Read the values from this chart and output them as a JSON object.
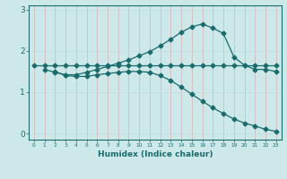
{
  "xlabel": "Humidex (Indice chaleur)",
  "bg_color": "#cce8e8",
  "line_color": "#1a6b6b",
  "grid_color_v": "#b8dede",
  "grid_color_h": "#c8e8e8",
  "xlim": [
    -0.5,
    23.5
  ],
  "ylim": [
    -0.15,
    3.1
  ],
  "yticks": [
    0,
    1,
    2,
    3
  ],
  "xticks": [
    0,
    1,
    2,
    3,
    4,
    5,
    6,
    7,
    8,
    9,
    10,
    11,
    12,
    13,
    14,
    15,
    16,
    17,
    18,
    19,
    20,
    21,
    22,
    23
  ],
  "series1_x": [
    0,
    1,
    2,
    3,
    4,
    5,
    6,
    7,
    8,
    9,
    10,
    11,
    12,
    13,
    14,
    15,
    16,
    17,
    18,
    19,
    20,
    21,
    22,
    23
  ],
  "series1_y": [
    1.65,
    1.65,
    1.65,
    1.65,
    1.65,
    1.65,
    1.65,
    1.65,
    1.65,
    1.65,
    1.65,
    1.65,
    1.65,
    1.65,
    1.65,
    1.65,
    1.65,
    1.65,
    1.65,
    1.65,
    1.65,
    1.65,
    1.65,
    1.65
  ],
  "series2_x": [
    1,
    2,
    3,
    4,
    5,
    6,
    7,
    8,
    9,
    10,
    11,
    12,
    13,
    14,
    15,
    16,
    17,
    18,
    19,
    20,
    21,
    22,
    23
  ],
  "series2_y": [
    1.55,
    1.48,
    1.42,
    1.42,
    1.48,
    1.55,
    1.62,
    1.7,
    1.78,
    1.88,
    1.98,
    2.12,
    2.28,
    2.45,
    2.58,
    2.65,
    2.55,
    2.42,
    1.85,
    1.65,
    1.55,
    1.55,
    1.5
  ],
  "series3_x": [
    2,
    3,
    4,
    5,
    6,
    7,
    8,
    9,
    10,
    11,
    12,
    13,
    14,
    15,
    16,
    17,
    18,
    19,
    20,
    21,
    22,
    23
  ],
  "series3_y": [
    1.5,
    1.4,
    1.38,
    1.38,
    1.42,
    1.45,
    1.48,
    1.5,
    1.5,
    1.48,
    1.4,
    1.28,
    1.12,
    0.95,
    0.78,
    0.62,
    0.48,
    0.35,
    0.25,
    0.18,
    0.1,
    0.05
  ]
}
